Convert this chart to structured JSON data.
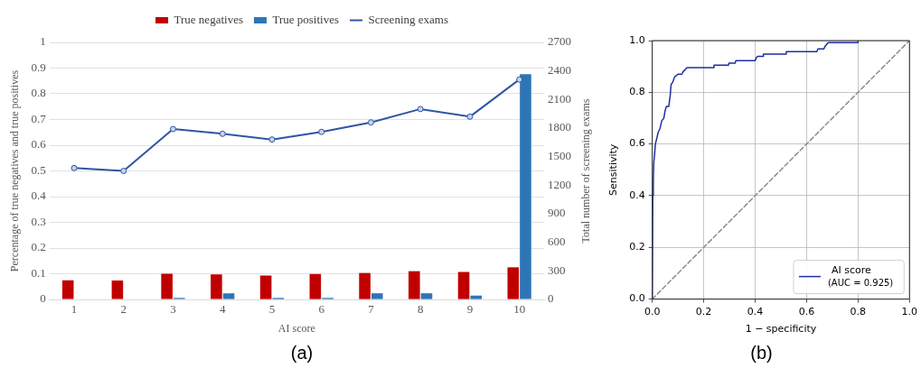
{
  "chart_data": [
    {
      "type": "bar",
      "title": "(a)",
      "xlabel": "AI score",
      "ylabel": "Percentage of true negatives and true positives",
      "y2label": "Total number of screening exams",
      "categories": [
        "1",
        "2",
        "3",
        "4",
        "5",
        "6",
        "7",
        "8",
        "9",
        "10"
      ],
      "series": [
        {
          "name": "True negatives",
          "color": "#c00000",
          "values": [
            0.075,
            0.074,
            0.1,
            0.097,
            0.093,
            0.099,
            0.103,
            0.11,
            0.107,
            0.125
          ]
        },
        {
          "name": "True positives",
          "color": "#2e75b6",
          "values": [
            0,
            0,
            0.006,
            0.024,
            0.006,
            0.006,
            0.024,
            0.024,
            0.015,
            0.876
          ]
        },
        {
          "name": "Screening exams",
          "type": "line",
          "axis": "y2",
          "color": "#2f55a4",
          "values": [
            1380,
            1350,
            1790,
            1740,
            1680,
            1760,
            1860,
            2000,
            1920,
            2310
          ]
        }
      ],
      "ylim": [
        0,
        1
      ],
      "yticks": [
        0,
        0.1,
        0.2,
        0.3,
        0.4,
        0.5,
        0.6,
        0.7,
        0.8,
        0.9,
        1
      ],
      "y2lim": [
        0,
        2700
      ],
      "y2ticks": [
        0,
        300,
        600,
        900,
        1200,
        1500,
        1800,
        2100,
        2400,
        2700
      ],
      "grid": "y",
      "legend": "top",
      "marker": "circle"
    },
    {
      "type": "line",
      "title": "(b)",
      "xlabel": "1 − specificity",
      "ylabel": "Sensitivity",
      "series": [
        {
          "name": "AI score",
          "color": "#1f2f9f",
          "x": [
            0,
            0.002,
            0.004,
            0.006,
            0.009,
            0.012,
            0.017,
            0.023,
            0.03,
            0.037,
            0.045,
            0.05,
            0.055,
            0.064,
            0.07,
            0.073,
            0.08,
            0.087,
            0.1,
            0.115,
            0.12,
            0.135,
            0.24,
            0.24,
            0.296,
            0.298,
            0.322,
            0.325,
            0.4,
            0.405,
            0.41,
            0.43,
            0.432,
            0.52,
            0.521,
            0.64,
            0.644,
            0.667,
            0.672,
            0.684,
            0.8,
            0.8
          ],
          "values": [
            0,
            0.4,
            0.46,
            0.53,
            0.56,
            0.6,
            0.62,
            0.645,
            0.66,
            0.69,
            0.7,
            0.73,
            0.745,
            0.745,
            0.79,
            0.83,
            0.84,
            0.86,
            0.87,
            0.87,
            0.88,
            0.895,
            0.895,
            0.905,
            0.905,
            0.913,
            0.913,
            0.922,
            0.922,
            0.935,
            0.939,
            0.939,
            0.948,
            0.948,
            0.957,
            0.957,
            0.968,
            0.968,
            0.978,
            0.992,
            0.992,
            1
          ]
        },
        {
          "color": "#8c8c8c",
          "x": [
            0,
            1
          ],
          "values": [
            0,
            1
          ],
          "line_style": "dashed"
        }
      ],
      "xlim": [
        0,
        1
      ],
      "xticks": [
        {
          "value": 0,
          "label": "0.0"
        },
        {
          "value": 0.2,
          "label": "0.2"
        },
        {
          "value": 0.4,
          "label": "0.4"
        },
        {
          "value": 0.6,
          "label": "0.6"
        },
        {
          "value": 0.8,
          "label": "0.8"
        },
        {
          "value": 1,
          "label": "1.0"
        }
      ],
      "ylim": [
        0,
        1
      ],
      "yticks": [
        {
          "value": 0,
          "label": "0.0"
        },
        {
          "value": 0.2,
          "label": "0.2"
        },
        {
          "value": 0.4,
          "label": "0.4"
        },
        {
          "value": 0.6,
          "label": "0.6"
        },
        {
          "value": 0.8,
          "label": "0.8"
        },
        {
          "value": 1,
          "label": "1.0"
        }
      ],
      "grid": true,
      "legend": "bottom right",
      "annotations": [
        "(AUC = 0.925)"
      ]
    }
  ]
}
